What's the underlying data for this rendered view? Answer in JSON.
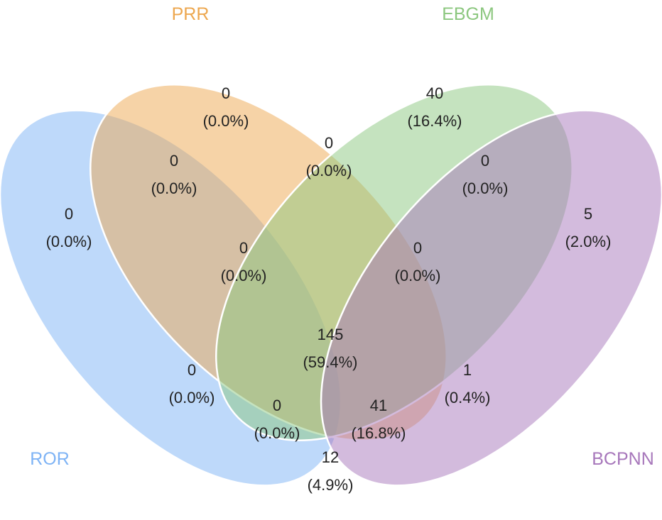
{
  "sets": [
    {
      "id": "ror",
      "label": "ROR",
      "color": "#7eb3f5"
    },
    {
      "id": "prr",
      "label": "PRR",
      "color": "#eda74f"
    },
    {
      "id": "ebgm",
      "label": "EBGM",
      "color": "#8cc77f"
    },
    {
      "id": "bcpnn",
      "label": "BCPNN",
      "color": "#a777bb"
    }
  ],
  "regions": [
    {
      "id": "ror-only",
      "sets": [
        "ROR"
      ],
      "count": "0",
      "percent": "(0.0%)"
    },
    {
      "id": "prr-only",
      "sets": [
        "PRR"
      ],
      "count": "0",
      "percent": "(0.0%)"
    },
    {
      "id": "ebgm-only",
      "sets": [
        "EBGM"
      ],
      "count": "40",
      "percent": "(16.4%)"
    },
    {
      "id": "bcpnn-only",
      "sets": [
        "BCPNN"
      ],
      "count": "5",
      "percent": "(2.0%)"
    },
    {
      "id": "ror-prr",
      "sets": [
        "ROR",
        "PRR"
      ],
      "count": "0",
      "percent": "(0.0%)"
    },
    {
      "id": "prr-ebgm",
      "sets": [
        "PRR",
        "EBGM"
      ],
      "count": "0",
      "percent": "(0.0%)"
    },
    {
      "id": "ebgm-bcpnn",
      "sets": [
        "EBGM",
        "BCPNN"
      ],
      "count": "0",
      "percent": "(0.0%)"
    },
    {
      "id": "ror-prr-ebgm",
      "sets": [
        "ROR",
        "PRR",
        "EBGM"
      ],
      "count": "0",
      "percent": "(0.0%)"
    },
    {
      "id": "prr-ebgm-bcpnn",
      "sets": [
        "PRR",
        "EBGM",
        "BCPNN"
      ],
      "count": "0",
      "percent": "(0.0%)"
    },
    {
      "id": "ror-ebgm",
      "sets": [
        "ROR",
        "EBGM"
      ],
      "count": "0",
      "percent": "(0.0%)"
    },
    {
      "id": "all-four",
      "sets": [
        "ROR",
        "PRR",
        "EBGM",
        "BCPNN"
      ],
      "count": "145",
      "percent": "(59.4%)"
    },
    {
      "id": "prr-bcpnn",
      "sets": [
        "PRR",
        "BCPNN"
      ],
      "count": "1",
      "percent": "(0.4%)"
    },
    {
      "id": "ror-ebgm-bcpnn",
      "sets": [
        "ROR",
        "EBGM",
        "BCPNN"
      ],
      "count": "0",
      "percent": "(0.0%)"
    },
    {
      "id": "ror-prr-bcpnn",
      "sets": [
        "ROR",
        "PRR",
        "BCPNN"
      ],
      "count": "41",
      "percent": "(16.8%)"
    },
    {
      "id": "ror-bcpnn",
      "sets": [
        "ROR",
        "BCPNN"
      ],
      "count": "12",
      "percent": "(4.9%)"
    }
  ]
}
